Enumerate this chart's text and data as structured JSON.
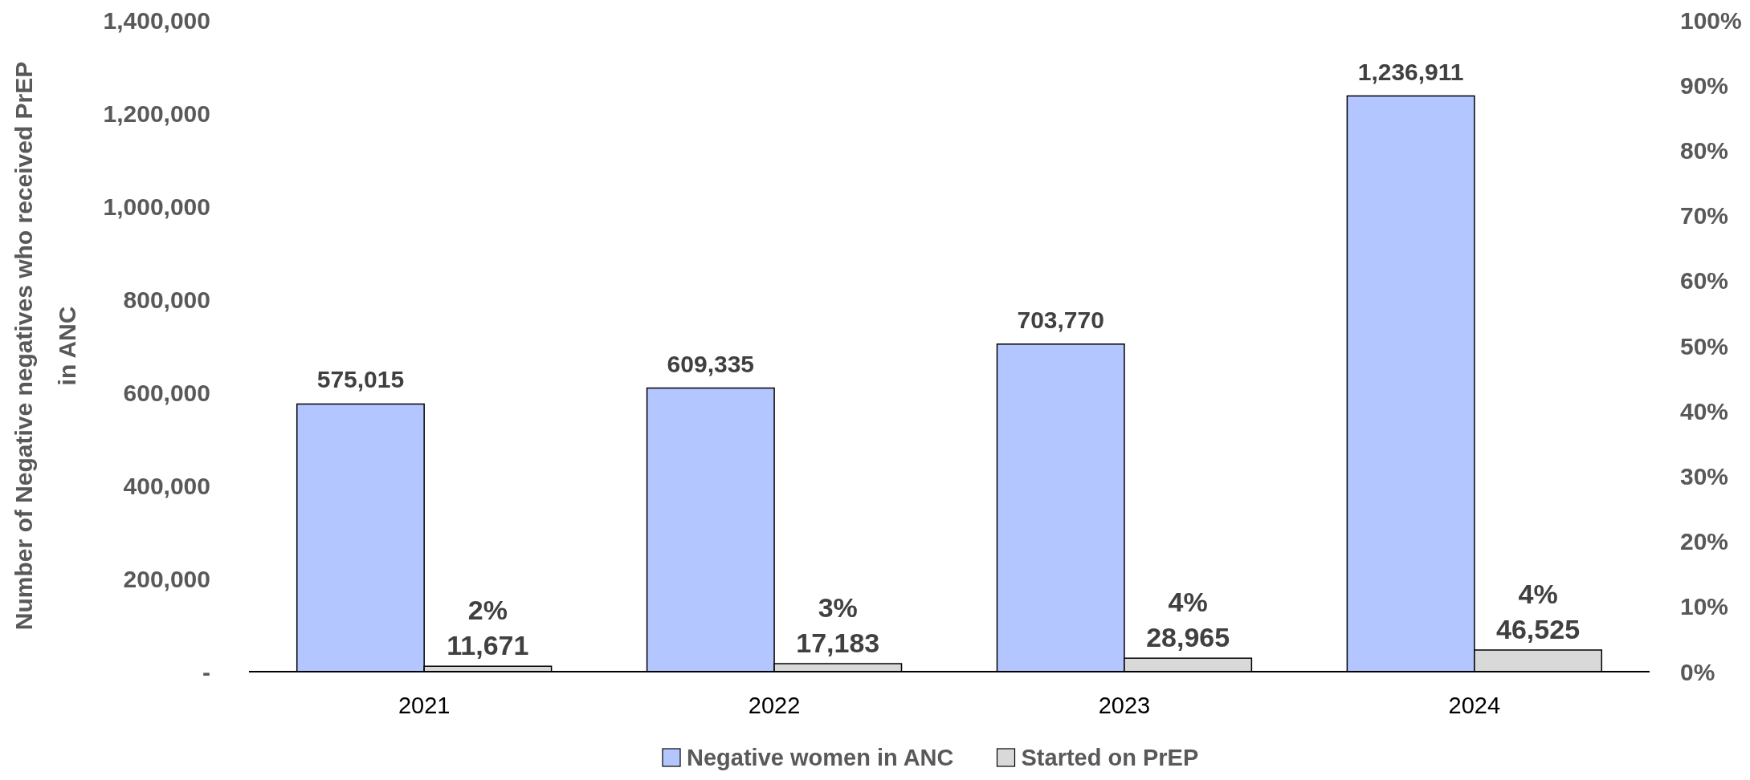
{
  "chart_data": {
    "type": "bar",
    "ylabel": "Number of Negative negatives who received PrEP in ANC",
    "categories": [
      "2021",
      "2022",
      "2023",
      "2024"
    ],
    "series": [
      {
        "name": "Negative women in ANC",
        "color": "#b3c6ff",
        "values": [
          575015,
          609335,
          703770,
          1236911
        ],
        "value_labels": [
          "575,015",
          "609,335",
          "703,770",
          "1,236,911"
        ]
      },
      {
        "name": "Started on PrEP",
        "color": "#d9d9d9",
        "values": [
          11671,
          17183,
          28965,
          46525
        ],
        "value_labels": [
          "11,671",
          "17,183",
          "28,965",
          "46,525"
        ]
      }
    ],
    "ylim": [
      0,
      1400000
    ],
    "yticks": [
      {
        "value": 0,
        "label": "-"
      },
      {
        "value": 200000,
        "label": "200,000"
      },
      {
        "value": 400000,
        "label": "400,000"
      },
      {
        "value": 600000,
        "label": "600,000"
      },
      {
        "value": 800000,
        "label": "800,000"
      },
      {
        "value": 1000000,
        "label": "1,000,000"
      },
      {
        "value": 1200000,
        "label": "1,200,000"
      },
      {
        "value": 1400000,
        "label": "1,400,000"
      }
    ],
    "y2lim": [
      0,
      100
    ],
    "y2ticks": [
      {
        "value": 0,
        "label": "0%"
      },
      {
        "value": 10,
        "label": "10%"
      },
      {
        "value": 20,
        "label": "20%"
      },
      {
        "value": 30,
        "label": "30%"
      },
      {
        "value": 40,
        "label": "40%"
      },
      {
        "value": 50,
        "label": "50%"
      },
      {
        "value": 60,
        "label": "60%"
      },
      {
        "value": 70,
        "label": "70%"
      },
      {
        "value": 80,
        "label": "80%"
      },
      {
        "value": 90,
        "label": "90%"
      },
      {
        "value": 100,
        "label": "100%"
      }
    ],
    "annotations": [
      {
        "text": "2%",
        "x": "2021"
      },
      {
        "text": "3%",
        "x": "2022"
      },
      {
        "text": "4%",
        "x": "2023"
      },
      {
        "text": "4%",
        "x": "2024"
      }
    ],
    "grid": false,
    "legend": "bottom"
  }
}
